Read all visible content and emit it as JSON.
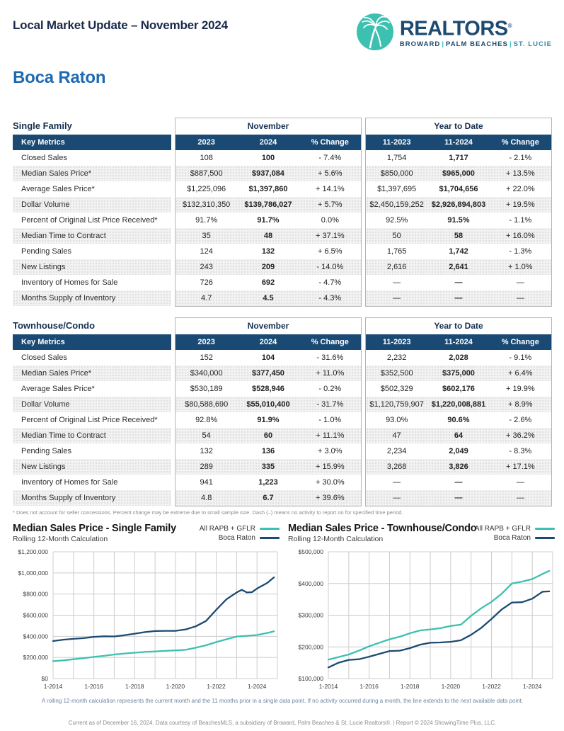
{
  "header": {
    "title": "Local Market Update – November 2024"
  },
  "logo": {
    "brand": "REALTORS",
    "reg": "®",
    "region1": "BROWARD",
    "region2": "PALM BEACHES",
    "region3": "ST. LUCIE",
    "sep": "|",
    "teal": "#3cc0b0",
    "navy": "#1c4a70"
  },
  "city": "Boca Raton",
  "tables": [
    {
      "label": "Single Family",
      "groups": [
        "November",
        "Year to Date"
      ],
      "header": [
        "Key Metrics",
        "2023",
        "2024",
        "% Change",
        "11-2023",
        "11-2024",
        "% Change"
      ],
      "rows": [
        {
          "metric": "Closed Sales",
          "values": [
            "108",
            "100",
            "- 7.4%",
            "1,754",
            "1,717",
            "- 2.1%"
          ]
        },
        {
          "metric": "Median Sales Price*",
          "values": [
            "$887,500",
            "$937,084",
            "+ 5.6%",
            "$850,000",
            "$965,000",
            "+ 13.5%"
          ]
        },
        {
          "metric": "Average Sales Price*",
          "values": [
            "$1,225,096",
            "$1,397,860",
            "+ 14.1%",
            "$1,397,695",
            "$1,704,656",
            "+ 22.0%"
          ]
        },
        {
          "metric": "Dollar Volume",
          "values": [
            "$132,310,350",
            "$139,786,027",
            "+ 5.7%",
            "$2,450,159,252",
            "$2,926,894,803",
            "+ 19.5%"
          ]
        },
        {
          "metric": "Percent of Original List Price Received*",
          "values": [
            "91.7%",
            "91.7%",
            "0.0%",
            "92.5%",
            "91.5%",
            "- 1.1%"
          ]
        },
        {
          "metric": "Median Time to Contract",
          "values": [
            "35",
            "48",
            "+ 37.1%",
            "50",
            "58",
            "+ 16.0%"
          ]
        },
        {
          "metric": "Pending Sales",
          "values": [
            "124",
            "132",
            "+ 6.5%",
            "1,765",
            "1,742",
            "- 1.3%"
          ]
        },
        {
          "metric": "New Listings",
          "values": [
            "243",
            "209",
            "- 14.0%",
            "2,616",
            "2,641",
            "+ 1.0%"
          ]
        },
        {
          "metric": "Inventory of Homes for Sale",
          "values": [
            "726",
            "692",
            "- 4.7%",
            "—",
            "—",
            "—"
          ]
        },
        {
          "metric": "Months Supply of Inventory",
          "values": [
            "4.7",
            "4.5",
            "- 4.3%",
            "—",
            "—",
            "—"
          ]
        }
      ]
    },
    {
      "label": "Townhouse/Condo",
      "groups": [
        "November",
        "Year to Date"
      ],
      "header": [
        "Key Metrics",
        "2023",
        "2024",
        "% Change",
        "11-2023",
        "11-2024",
        "% Change"
      ],
      "rows": [
        {
          "metric": "Closed Sales",
          "values": [
            "152",
            "104",
            "- 31.6%",
            "2,232",
            "2,028",
            "- 9.1%"
          ]
        },
        {
          "metric": "Median Sales Price*",
          "values": [
            "$340,000",
            "$377,450",
            "+ 11.0%",
            "$352,500",
            "$375,000",
            "+ 6.4%"
          ]
        },
        {
          "metric": "Average Sales Price*",
          "values": [
            "$530,189",
            "$528,946",
            "- 0.2%",
            "$502,329",
            "$602,176",
            "+ 19.9%"
          ]
        },
        {
          "metric": "Dollar Volume",
          "values": [
            "$80,588,690",
            "$55,010,400",
            "- 31.7%",
            "$1,120,759,907",
            "$1,220,008,881",
            "+ 8.9%"
          ]
        },
        {
          "metric": "Percent of Original List Price Received*",
          "values": [
            "92.8%",
            "91.9%",
            "- 1.0%",
            "93.0%",
            "90.6%",
            "- 2.6%"
          ]
        },
        {
          "metric": "Median Time to Contract",
          "values": [
            "54",
            "60",
            "+ 11.1%",
            "47",
            "64",
            "+ 36.2%"
          ]
        },
        {
          "metric": "Pending Sales",
          "values": [
            "132",
            "136",
            "+ 3.0%",
            "2,234",
            "2,049",
            "- 8.3%"
          ]
        },
        {
          "metric": "New Listings",
          "values": [
            "289",
            "335",
            "+ 15.9%",
            "3,268",
            "3,826",
            "+ 17.1%"
          ]
        },
        {
          "metric": "Inventory of Homes for Sale",
          "values": [
            "941",
            "1,223",
            "+ 30.0%",
            "—",
            "—",
            "—"
          ]
        },
        {
          "metric": "Months Supply of Inventory",
          "values": [
            "4.8",
            "6.7",
            "+ 39.6%",
            "—",
            "—",
            "—"
          ]
        }
      ]
    }
  ],
  "table_footnote": "* Does not account for seller concessions. Percent change may be extreme due to small sample size. Dash (–) means no activity to report on for specified time period.",
  "chart_data": [
    {
      "type": "line",
      "title": "Median Sales Price - Single Family",
      "subtitle": "Rolling 12-Month Calculation",
      "xlabel": "",
      "ylabel": "",
      "grid": true,
      "legend_position": "top-right",
      "xlim": [
        2014,
        2025
      ],
      "ylim": [
        0,
        1200000
      ],
      "y_ticks": [
        "$0",
        "$200,000",
        "$400,000",
        "$600,000",
        "$800,000",
        "$1,000,000",
        "$1,200,000"
      ],
      "x_ticks": [
        {
          "label": "1-2014",
          "x": 2014
        },
        {
          "label": "1-2016",
          "x": 2016
        },
        {
          "label": "1-2018",
          "x": 2018
        },
        {
          "label": "1-2020",
          "x": 2020
        },
        {
          "label": "1-2022",
          "x": 2022
        },
        {
          "label": "1-2024",
          "x": 2024
        }
      ],
      "series": [
        {
          "name": "All RAPB + GFLR",
          "color": "#3cc0b0",
          "x": [
            2014.0,
            2014.5,
            2015.0,
            2015.5,
            2016.0,
            2016.5,
            2017.0,
            2017.5,
            2018.0,
            2018.5,
            2019.0,
            2019.5,
            2020.0,
            2020.5,
            2021.0,
            2021.5,
            2022.0,
            2022.5,
            2023.0,
            2023.5,
            2024.0,
            2024.5,
            2024.83
          ],
          "values": [
            165000,
            172000,
            183000,
            193000,
            205000,
            215000,
            228000,
            237000,
            245000,
            252000,
            257000,
            262000,
            267000,
            272000,
            292000,
            315000,
            345000,
            372000,
            398000,
            405000,
            412000,
            432000,
            447000
          ]
        },
        {
          "name": "Boca Raton",
          "color": "#1c4a70",
          "x": [
            2014.0,
            2014.5,
            2015.0,
            2015.5,
            2016.0,
            2016.5,
            2017.0,
            2017.5,
            2018.0,
            2018.5,
            2019.0,
            2019.5,
            2020.0,
            2020.5,
            2021.0,
            2021.5,
            2022.0,
            2022.5,
            2023.0,
            2023.25,
            2023.5,
            2023.75,
            2024.0,
            2024.5,
            2024.83
          ],
          "values": [
            355000,
            368000,
            376000,
            383000,
            395000,
            400000,
            399000,
            410000,
            425000,
            440000,
            450000,
            452000,
            452000,
            465000,
            495000,
            545000,
            650000,
            750000,
            815000,
            840000,
            815000,
            818000,
            852000,
            905000,
            958000
          ]
        }
      ]
    },
    {
      "type": "line",
      "title": "Median Sales Price - Townhouse/Condo",
      "subtitle": "Rolling 12-Month Calculation",
      "xlabel": "",
      "ylabel": "",
      "grid": true,
      "legend_position": "top-right",
      "xlim": [
        2014,
        2025
      ],
      "ylim": [
        100000,
        500000
      ],
      "y_ticks": [
        "$100,000",
        "$200,000",
        "$300,000",
        "$400,000",
        "$500,000"
      ],
      "x_ticks": [
        {
          "label": "1-2014",
          "x": 2014
        },
        {
          "label": "1-2016",
          "x": 2016
        },
        {
          "label": "1-2018",
          "x": 2018
        },
        {
          "label": "1-2020",
          "x": 2020
        },
        {
          "label": "1-2022",
          "x": 2022
        },
        {
          "label": "1-2024",
          "x": 2024
        }
      ],
      "series": [
        {
          "name": "All RAPB + GFLR",
          "color": "#3cc0b0",
          "x": [
            2014.0,
            2014.5,
            2015.0,
            2015.5,
            2016.0,
            2016.5,
            2017.0,
            2017.5,
            2018.0,
            2018.5,
            2019.0,
            2019.5,
            2020.0,
            2020.5,
            2021.0,
            2021.5,
            2022.0,
            2022.5,
            2023.0,
            2023.5,
            2024.0,
            2024.5,
            2024.83
          ],
          "values": [
            160000,
            168000,
            176000,
            188000,
            202000,
            213000,
            224000,
            232000,
            243000,
            252000,
            255000,
            259000,
            266000,
            270000,
            298000,
            322000,
            342000,
            368000,
            400000,
            406000,
            414000,
            430000,
            440000
          ]
        },
        {
          "name": "Boca Raton",
          "color": "#1c4a70",
          "x": [
            2014.0,
            2014.5,
            2015.0,
            2015.5,
            2016.0,
            2016.5,
            2017.0,
            2017.5,
            2018.0,
            2018.5,
            2019.0,
            2019.5,
            2020.0,
            2020.5,
            2021.0,
            2021.5,
            2022.0,
            2022.5,
            2023.0,
            2023.5,
            2024.0,
            2024.5,
            2024.83
          ],
          "values": [
            135000,
            150000,
            159000,
            161000,
            169000,
            178000,
            187000,
            188000,
            196000,
            207000,
            213000,
            214000,
            216000,
            221000,
            238000,
            260000,
            288000,
            318000,
            340000,
            341000,
            352000,
            374000,
            375000
          ]
        }
      ]
    }
  ],
  "footer": {
    "rolling_note": "A rolling 12-month calculation represents the current month and the 11 months prior in a single data point. If no activity occurred during a month, the line extends to the next available data point.",
    "credit": "Current as of December 16, 2024. Data courtesy of BeachesMLS, a subsidiary of Broward, Palm Beaches & St. Lucie Realtors®. | Report © 2024 ShowingTime Plus, LLC."
  }
}
